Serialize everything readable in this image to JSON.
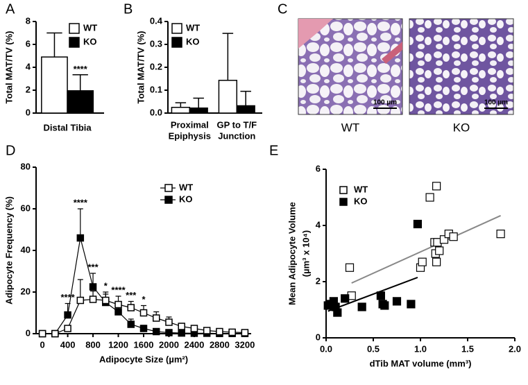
{
  "chart_data": [
    {
      "type": "bar",
      "panel": "A",
      "ylabel": "Total MAT/TV (%)",
      "categories": [
        "Distal Tibia"
      ],
      "series": [
        {
          "name": "WT",
          "color": "#ffffff",
          "values": [
            4.9
          ],
          "errors": [
            2.1
          ]
        },
        {
          "name": "KO",
          "color": "#000000",
          "values": [
            1.95
          ],
          "errors": [
            1.4
          ]
        }
      ],
      "ylim": [
        0,
        8
      ],
      "yticks": [
        0,
        2,
        4,
        6,
        8
      ],
      "legend": "upper right",
      "annotations": [
        {
          "category": "Distal Tibia",
          "series": "KO",
          "text": "****"
        }
      ]
    },
    {
      "type": "bar",
      "panel": "B",
      "ylabel": "Total MAT/TV (%)",
      "categories": [
        [
          "Proximal",
          "Epiphysis"
        ],
        [
          "GP to T/F",
          "Junction"
        ]
      ],
      "series": [
        {
          "name": "WT",
          "color": "#ffffff",
          "values": [
            0.025,
            0.143
          ],
          "errors": [
            0.02,
            0.205
          ]
        },
        {
          "name": "KO",
          "color": "#000000",
          "values": [
            0.022,
            0.032
          ],
          "errors": [
            0.043,
            0.063
          ]
        }
      ],
      "ylim": [
        0,
        0.4
      ],
      "yticks": [
        {
          "value": 0,
          "label": "0.0"
        },
        0.1,
        0.2,
        0.3,
        0.4
      ],
      "legend": "upper left"
    },
    {
      "type": "line",
      "panel": "D",
      "xlabel": "Adipocyte Size (µm²)",
      "ylabel": "Adipocyte Frequency (%)",
      "x": [
        0,
        200,
        400,
        600,
        800,
        1000,
        1200,
        1400,
        1600,
        1800,
        2000,
        2200,
        2400,
        2600,
        2800,
        3000,
        3200
      ],
      "series": [
        {
          "name": "WT",
          "color": "#ffffff",
          "values": [
            0,
            0,
            2.5,
            16,
            16.5,
            16,
            14,
            12.5,
            10,
            7.5,
            5.5,
            3.5,
            2.5,
            1.5,
            1,
            0.7,
            0.5
          ],
          "errors": [
            0,
            0,
            1,
            10,
            4,
            4,
            4,
            3,
            3.5,
            3,
            2.5,
            1.5,
            1,
            1,
            0.5,
            0.5,
            0.5
          ]
        },
        {
          "name": "KO",
          "color": "#000000",
          "values": [
            0,
            0,
            9,
            46,
            22.5,
            15,
            10.5,
            4.5,
            2.5,
            1,
            0.5,
            0.3,
            0.2,
            0.2,
            0.1,
            0.1,
            0.1
          ],
          "errors": [
            0,
            0,
            5.5,
            14,
            6.5,
            4,
            3,
            2.5,
            1.5,
            0.5,
            0.5,
            0.5,
            0.5,
            0.5,
            0.5,
            0.5,
            0.5
          ]
        }
      ],
      "xlim": [
        -100,
        3300
      ],
      "xticks": [
        0,
        400,
        800,
        1200,
        1600,
        2000,
        2400,
        2800,
        3200
      ],
      "ylim": [
        0,
        80
      ],
      "yticks": [
        0,
        20,
        40,
        60,
        80
      ],
      "legend": "upper right",
      "annotations": [
        {
          "x": 400,
          "text": "****"
        },
        {
          "x": 600,
          "text": "****"
        },
        {
          "x": 800,
          "text": "***"
        },
        {
          "x": 1000,
          "text": "*"
        },
        {
          "x": 1200,
          "text": "****"
        },
        {
          "x": 1400,
          "text": "***"
        },
        {
          "x": 1600,
          "text": "*"
        }
      ]
    },
    {
      "type": "scatter",
      "panel": "E",
      "xlabel": "dTib MAT volume (mm³)",
      "ylabel": [
        "Mean Adipocyte Volume",
        "(µm³ x 10⁴)"
      ],
      "series": [
        {
          "name": "WT",
          "color": "#ffffff",
          "line_color": "#888888",
          "x": [
            0.25,
            0.27,
            1.1,
            1.17,
            1.0,
            1.02,
            1.15,
            1.18,
            1.16,
            1.2,
            1.17,
            1.25,
            1.3,
            1.35,
            1.85
          ],
          "values": [
            2.5,
            1.5,
            5.0,
            5.4,
            2.5,
            2.7,
            3.4,
            3.4,
            3.0,
            3.1,
            2.7,
            3.5,
            3.7,
            3.6,
            3.7
          ],
          "fit": {
            "x": [
              0.27,
              1.85
            ],
            "y": [
              1.95,
              4.35
            ]
          }
        },
        {
          "name": "KO",
          "color": "#000000",
          "line_color": "#000000",
          "x": [
            0.02,
            0.05,
            0.08,
            0.1,
            0.12,
            0.2,
            0.38,
            0.58,
            0.6,
            0.62,
            0.75,
            0.9,
            0.97
          ],
          "values": [
            1.15,
            1.2,
            1.3,
            1.1,
            0.9,
            1.4,
            1.1,
            1.5,
            1.2,
            1.15,
            1.3,
            1.2,
            4.05
          ],
          "fit": {
            "x": [
              0.02,
              0.97
            ],
            "y": [
              0.95,
              2.15
            ]
          }
        }
      ],
      "xlim": [
        0,
        2
      ],
      "xticks": [
        {
          "value": 0,
          "label": "0.0"
        },
        0.5,
        {
          "value": 1,
          "label": "1.0"
        },
        1.5,
        {
          "value": 2,
          "label": "2.0"
        }
      ],
      "ylim": [
        0,
        6
      ],
      "yticks": [
        0,
        2,
        4,
        6
      ],
      "legend": "upper left"
    }
  ],
  "figure_c": {
    "panel": "C",
    "images": [
      {
        "caption": "WT",
        "scale_bar": "100 µm"
      },
      {
        "caption": "KO",
        "scale_bar": "100 µm"
      }
    ]
  }
}
